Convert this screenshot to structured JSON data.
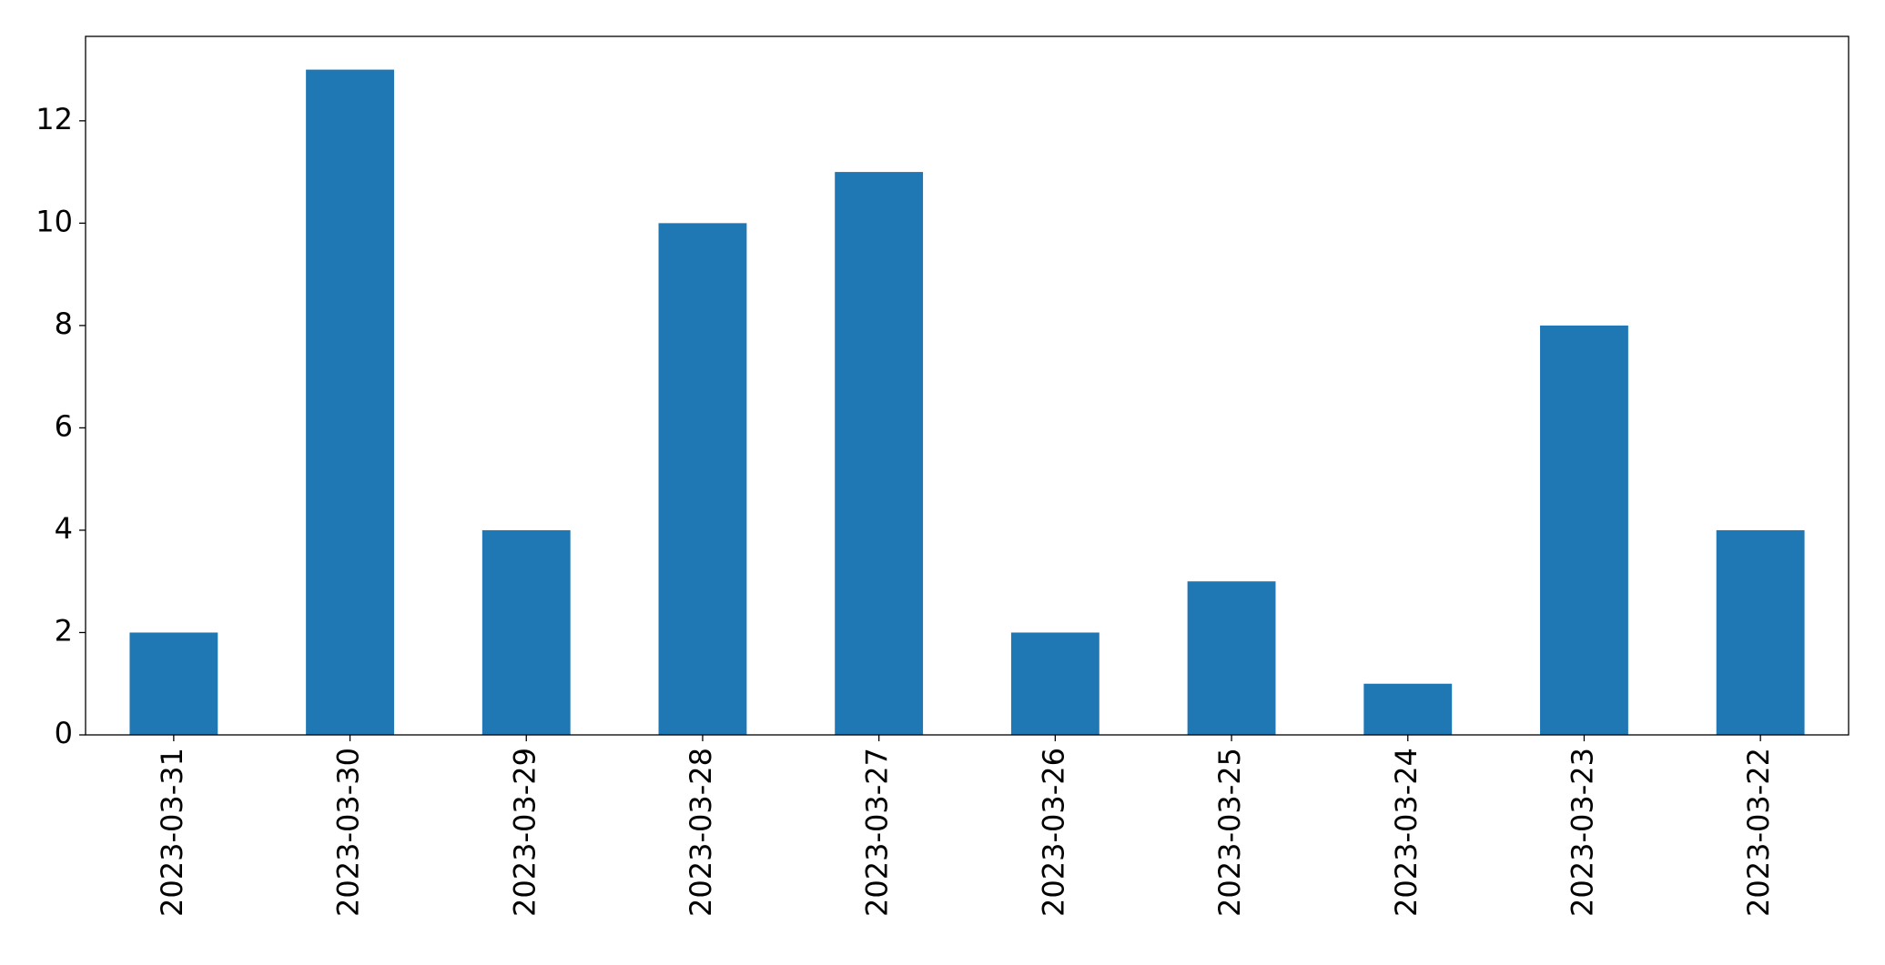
{
  "chart_data": {
    "type": "bar",
    "categories": [
      "2023-03-31",
      "2023-03-30",
      "2023-03-29",
      "2023-03-28",
      "2023-03-27",
      "2023-03-26",
      "2023-03-25",
      "2023-03-24",
      "2023-03-23",
      "2023-03-22"
    ],
    "values": [
      2,
      13,
      4,
      10,
      11,
      2,
      3,
      1,
      8,
      4
    ],
    "color": "#1f77b4",
    "ylim": [
      0,
      13.65
    ],
    "yticks": [
      0,
      2,
      4,
      6,
      8,
      10,
      12
    ],
    "grid": false
  }
}
